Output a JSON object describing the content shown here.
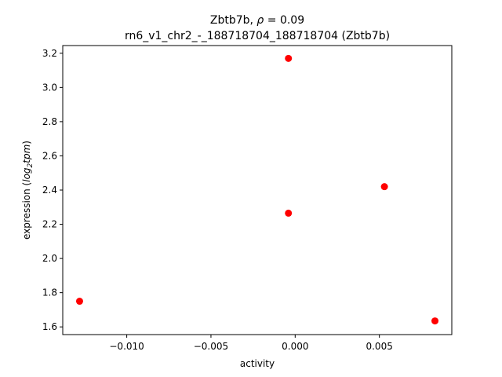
{
  "chart_data": {
    "type": "scatter",
    "title_line1_prefix": "Zbtb7b, ",
    "title_rho_symbol": "ρ",
    "title_rho_value": " = 0.09",
    "title_line2": "rn6_v1_chr2_-_188718704_188718704 (Zbtb7b)",
    "xlabel": "activity",
    "ylabel_prefix": "expression (",
    "ylabel_log": "log",
    "ylabel_sub": "2",
    "ylabel_tpm": "tpm",
    "ylabel_suffix": ")",
    "xlim": [
      -0.0138,
      0.0093
    ],
    "ylim": [
      1.555,
      3.245
    ],
    "xticks": [
      {
        "value": -0.01,
        "label": "−0.010"
      },
      {
        "value": -0.005,
        "label": "−0.005"
      },
      {
        "value": 0.0,
        "label": "0.000"
      },
      {
        "value": 0.005,
        "label": "0.005"
      }
    ],
    "yticks": [
      {
        "value": 1.6,
        "label": "1.6"
      },
      {
        "value": 1.8,
        "label": "1.8"
      },
      {
        "value": 2.0,
        "label": "2.0"
      },
      {
        "value": 2.2,
        "label": "2.2"
      },
      {
        "value": 2.4,
        "label": "2.4"
      },
      {
        "value": 2.6,
        "label": "2.6"
      },
      {
        "value": 2.8,
        "label": "2.8"
      },
      {
        "value": 3.0,
        "label": "3.0"
      },
      {
        "value": 3.2,
        "label": "3.2"
      }
    ],
    "point_color": "#ff0000",
    "grid": false,
    "points": [
      {
        "x": -0.0128,
        "y": 1.75
      },
      {
        "x": -0.0004,
        "y": 3.17
      },
      {
        "x": -0.0004,
        "y": 2.265
      },
      {
        "x": 0.0053,
        "y": 2.42
      },
      {
        "x": 0.0083,
        "y": 1.635
      }
    ]
  }
}
